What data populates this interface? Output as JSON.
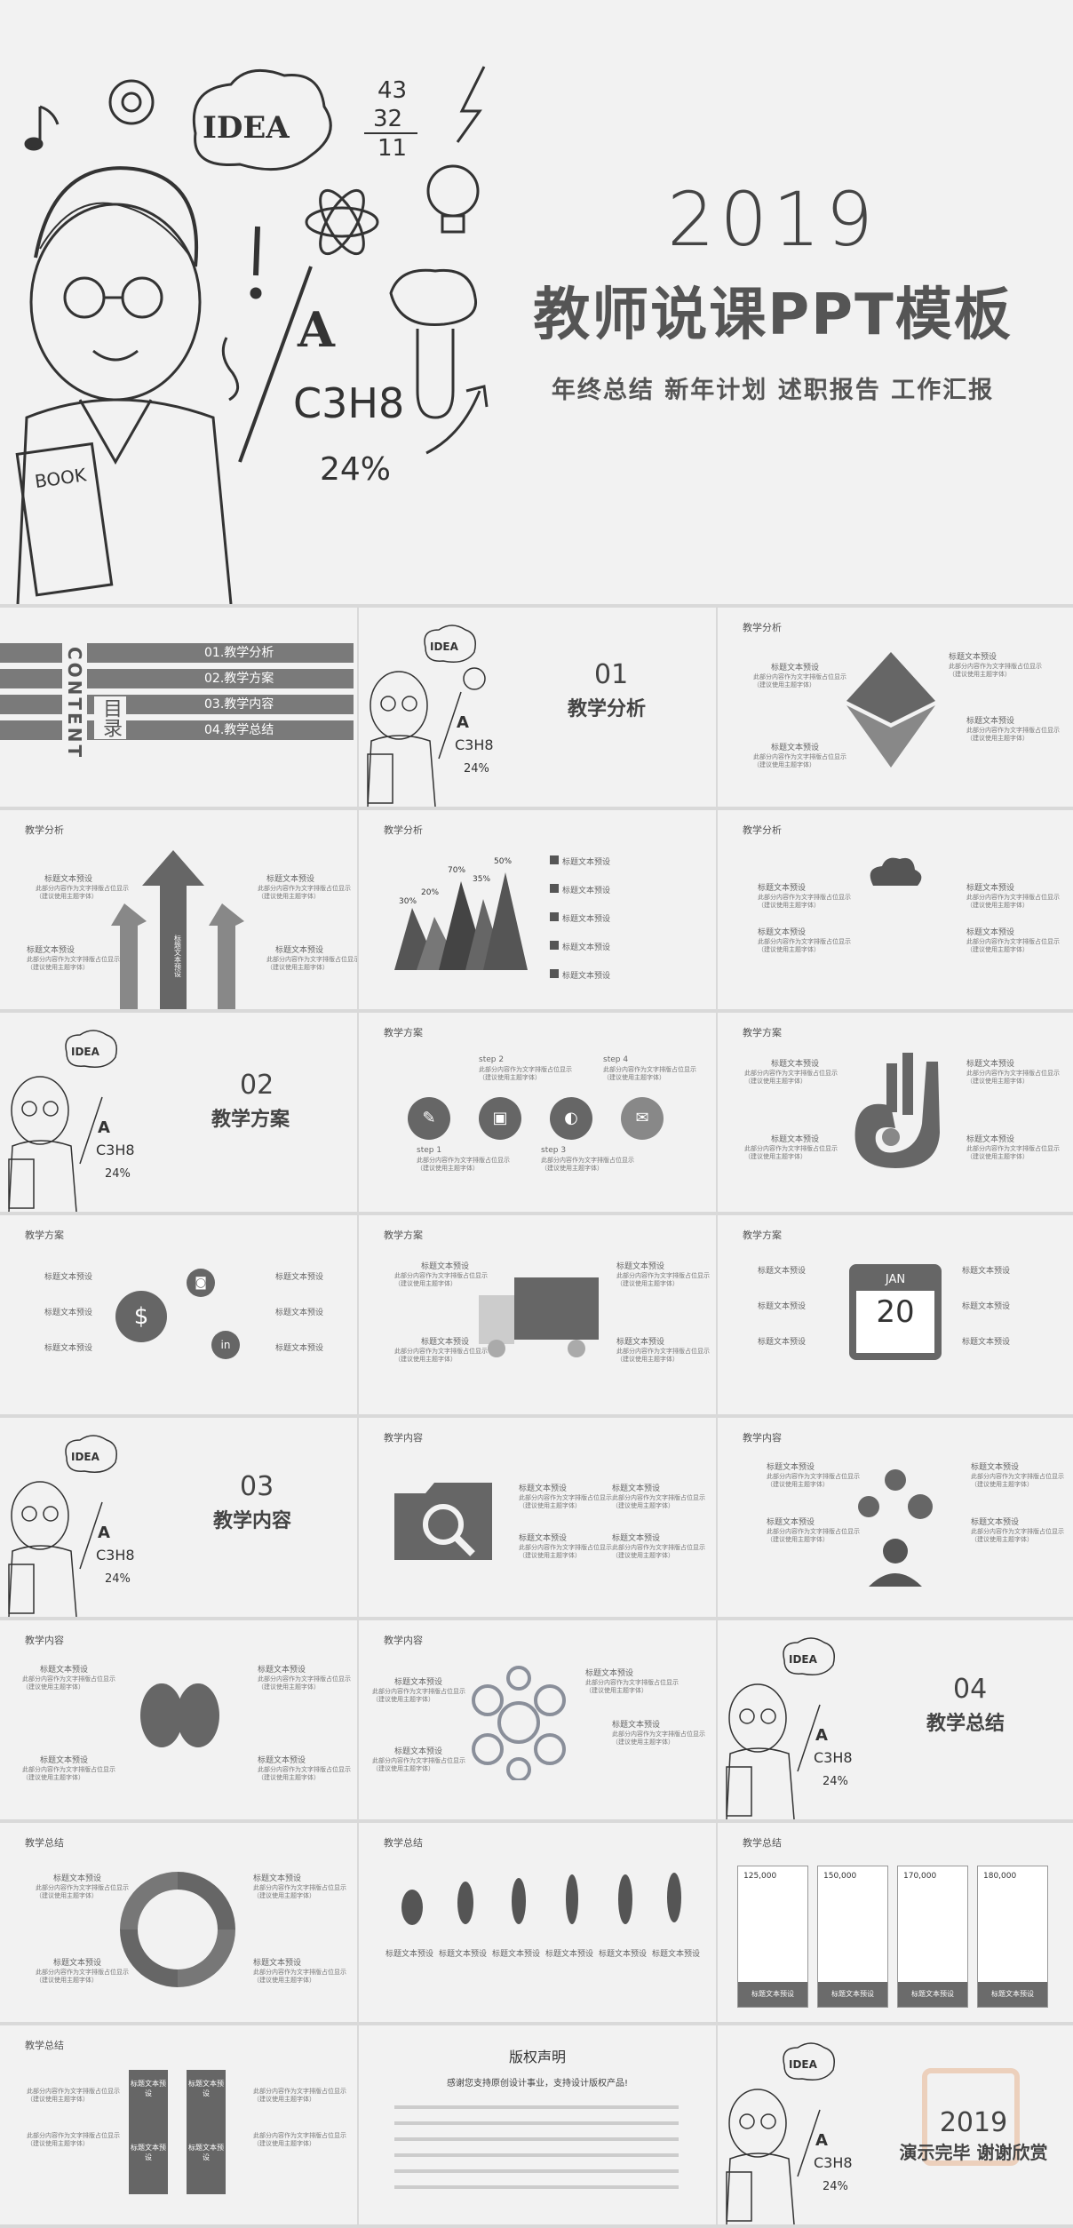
{
  "cover": {
    "year": "2019",
    "title": "教师说课PPT模板",
    "subtitle": "年终总结 新年计划 述职报告 工作汇报",
    "doodle_text": {
      "idea": "IDEA",
      "formula": "C3H8",
      "percent": "24%",
      "book": "BOOK",
      "math1": "43",
      "math2": "32",
      "math3": "11",
      "letter": "A"
    }
  },
  "toc": {
    "content_label": "CONTENT",
    "mulu_label": "目录",
    "items": [
      "01.教学分析",
      "02.教学方案",
      "03.教学内容",
      "04.教学总结"
    ]
  },
  "sections": [
    {
      "num": "01",
      "name": "教学分析"
    },
    {
      "num": "02",
      "name": "教学方案"
    },
    {
      "num": "03",
      "name": "教学内容"
    },
    {
      "num": "04",
      "name": "教学总结"
    }
  ],
  "tags": {
    "analysis": "教学分析",
    "plan": "教学方案",
    "content": "教学内容",
    "summary": "教学总结"
  },
  "placeholder": {
    "heading": "标题文本预设",
    "body": "此部分内容作为文字排版占位显示（建议使用主题字体）"
  },
  "arrow_slide": {
    "center_label": "标题文本预设"
  },
  "mountain_slide": {
    "percents": [
      "30%",
      "20%",
      "70%",
      "35%",
      "50%"
    ]
  },
  "steps_slide": {
    "steps": [
      "step 1",
      "step 2",
      "step 3",
      "step 4"
    ]
  },
  "calendar_slide": {
    "month": "JAN",
    "day": "20"
  },
  "price_slide": {
    "values": [
      "125,000",
      "150,000",
      "170,000",
      "180,000"
    ]
  },
  "arrows_down_slide": {
    "labels": [
      "标题文本预设",
      "标题文本预设",
      "标题文本预设",
      "标题文本预设"
    ]
  },
  "copyright": {
    "title": "版权声明",
    "subtitle": "感谢您支持原创设计事业，支持设计版权产品!"
  },
  "ending": {
    "year": "2019",
    "text": "演示完毕 谢谢欣赏"
  }
}
